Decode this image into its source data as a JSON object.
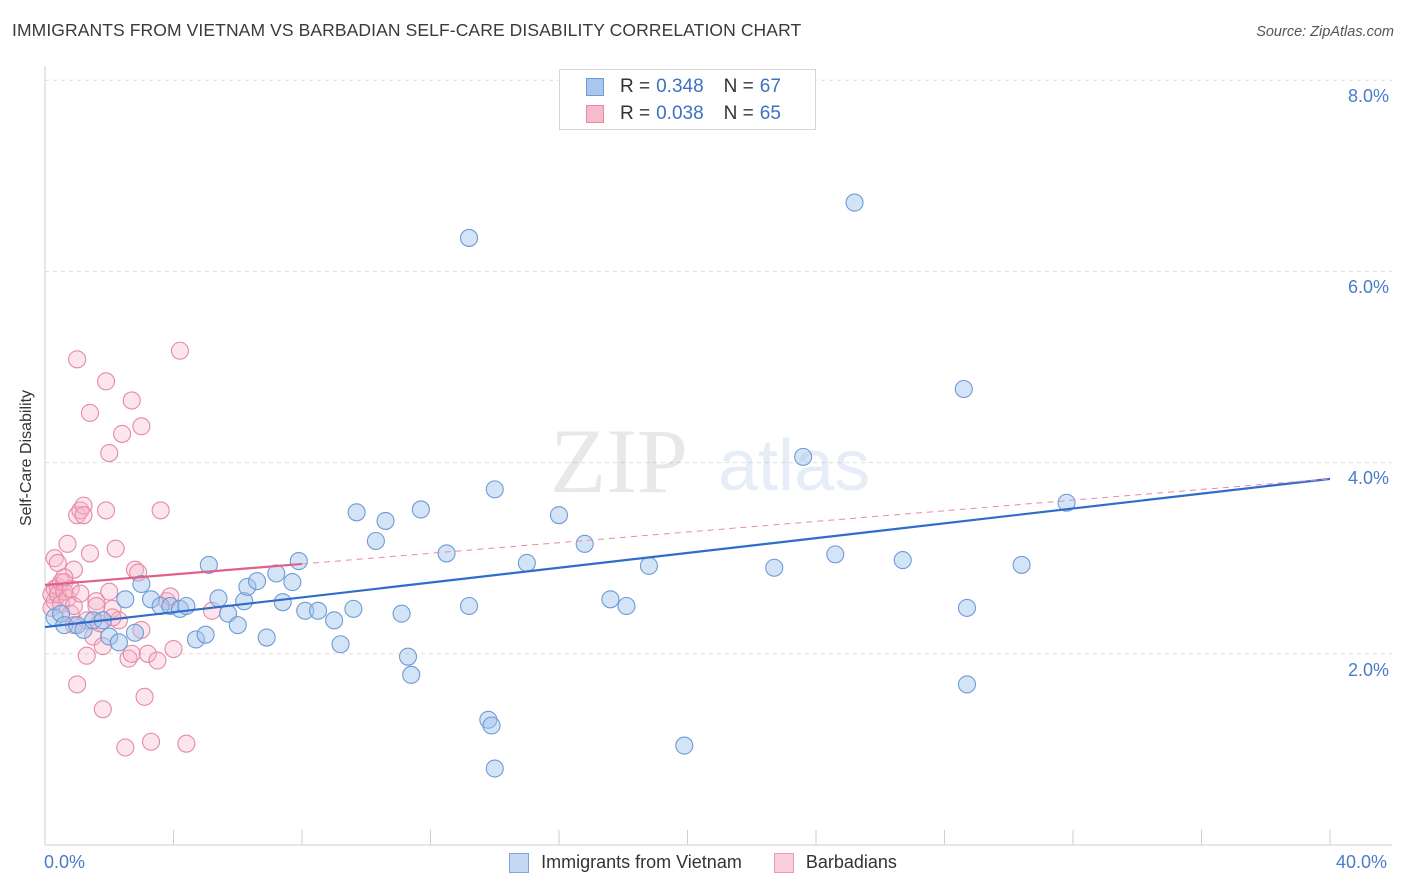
{
  "title": "IMMIGRANTS FROM VIETNAM VS BARBADIAN SELF-CARE DISABILITY CORRELATION CHART",
  "source": "Source: ZipAtlas.com",
  "watermark": {
    "zip": "ZIP",
    "atlas": "atlas"
  },
  "legend_top": {
    "rows": [
      {
        "r_key": "R =",
        "r_value": "0.348",
        "n_key": "N =",
        "n_value": "67",
        "fill": "#a9c6ef",
        "stroke": "#6e9ad6"
      },
      {
        "r_key": "R =",
        "r_value": "0.038",
        "n_key": "N =",
        "n_value": "65",
        "fill": "#f7bccc",
        "stroke": "#e58aa6"
      }
    ]
  },
  "legend_bottom": [
    {
      "label": "Immigrants from Vietnam",
      "fill": "#c4d8f3",
      "stroke": "#7ea5dc"
    },
    {
      "label": "Barbadians",
      "fill": "#f9cfdb",
      "stroke": "#ea9bb5"
    }
  ],
  "chart_data": {
    "type": "scatter",
    "title": "IMMIGRANTS FROM VIETNAM VS BARBADIAN SELF-CARE DISABILITY CORRELATION CHART",
    "xlabel": "",
    "ylabel": "Self-Care Disability",
    "xlim": [
      0,
      40
    ],
    "ylim": [
      0,
      8
    ],
    "x_tick_labels": [
      "0.0%",
      "40.0%"
    ],
    "y_tick_labels": [
      "2.0%",
      "4.0%",
      "6.0%",
      "8.0%"
    ],
    "y_tick_values": [
      2,
      4,
      6,
      8
    ],
    "grid": "horizontal dashed",
    "series": [
      {
        "name": "Immigrants from Vietnam",
        "color": "#6e9ad6",
        "fill": "rgba(160,195,238,0.45)",
        "trend": {
          "x0": 0,
          "y0": 2.28,
          "x1": 40,
          "y1": 3.83,
          "color": "#2f6ccc"
        },
        "points": [
          [
            0.3,
            2.38
          ],
          [
            0.5,
            2.42
          ],
          [
            0.6,
            2.3
          ],
          [
            1.0,
            2.3
          ],
          [
            1.2,
            2.25
          ],
          [
            1.5,
            2.35
          ],
          [
            1.8,
            2.35
          ],
          [
            2.0,
            2.18
          ],
          [
            2.3,
            2.12
          ],
          [
            2.5,
            2.57
          ],
          [
            2.8,
            2.22
          ],
          [
            3.0,
            2.73
          ],
          [
            3.3,
            2.57
          ],
          [
            3.6,
            2.5
          ],
          [
            3.9,
            2.5
          ],
          [
            4.2,
            2.47
          ],
          [
            4.4,
            2.5
          ],
          [
            4.7,
            2.15
          ],
          [
            5.0,
            2.2
          ],
          [
            5.1,
            2.93
          ],
          [
            5.4,
            2.58
          ],
          [
            5.7,
            2.42
          ],
          [
            6.0,
            2.3
          ],
          [
            6.2,
            2.55
          ],
          [
            6.3,
            2.7
          ],
          [
            6.6,
            2.76
          ],
          [
            6.9,
            2.17
          ],
          [
            7.2,
            2.84
          ],
          [
            7.4,
            2.54
          ],
          [
            7.7,
            2.75
          ],
          [
            7.9,
            2.97
          ],
          [
            8.1,
            2.45
          ],
          [
            8.5,
            2.45
          ],
          [
            9.0,
            2.35
          ],
          [
            9.2,
            2.1
          ],
          [
            9.6,
            2.47
          ],
          [
            9.7,
            3.48
          ],
          [
            10.3,
            3.18
          ],
          [
            10.6,
            3.39
          ],
          [
            11.1,
            2.42
          ],
          [
            11.3,
            1.97
          ],
          [
            11.4,
            1.78
          ],
          [
            11.7,
            3.51
          ],
          [
            12.5,
            3.05
          ],
          [
            13.2,
            6.35
          ],
          [
            13.2,
            2.5
          ],
          [
            13.8,
            1.31
          ],
          [
            13.9,
            1.25
          ],
          [
            14.0,
            3.72
          ],
          [
            14.0,
            0.8
          ],
          [
            15.0,
            2.95
          ],
          [
            16.0,
            3.45
          ],
          [
            16.8,
            3.15
          ],
          [
            17.6,
            2.57
          ],
          [
            18.1,
            2.5
          ],
          [
            18.8,
            2.92
          ],
          [
            19.9,
            1.04
          ],
          [
            22.7,
            2.9
          ],
          [
            23.6,
            4.06
          ],
          [
            24.6,
            3.04
          ],
          [
            25.2,
            6.72
          ],
          [
            26.7,
            2.98
          ],
          [
            28.6,
            4.77
          ],
          [
            28.7,
            2.48
          ],
          [
            28.7,
            1.68
          ],
          [
            30.4,
            2.93
          ],
          [
            31.8,
            3.58
          ]
        ]
      },
      {
        "name": "Barbadians",
        "color": "#e58aa6",
        "fill": "rgba(246,180,200,0.35)",
        "trend": {
          "x0": 0,
          "y0": 2.72,
          "x1": 8,
          "y1": 2.94,
          "color": "#e0608c"
        },
        "trend_dashed": {
          "x0": 8,
          "y0": 2.94,
          "x1": 40,
          "y1": 3.83,
          "color": "#e78aa8"
        },
        "points": [
          [
            0.2,
            2.48
          ],
          [
            0.2,
            2.62
          ],
          [
            0.3,
            2.55
          ],
          [
            0.3,
            2.68
          ],
          [
            0.3,
            3.0
          ],
          [
            0.4,
            2.7
          ],
          [
            0.4,
            2.62
          ],
          [
            0.5,
            2.75
          ],
          [
            0.5,
            2.52
          ],
          [
            0.6,
            2.75
          ],
          [
            0.6,
            2.65
          ],
          [
            0.7,
            2.58
          ],
          [
            0.7,
            3.15
          ],
          [
            0.8,
            2.68
          ],
          [
            0.8,
            2.42
          ],
          [
            0.9,
            2.5
          ],
          [
            0.9,
            2.88
          ],
          [
            1.0,
            3.45
          ],
          [
            1.0,
            1.68
          ],
          [
            1.1,
            3.5
          ],
          [
            1.2,
            3.55
          ],
          [
            1.2,
            3.45
          ],
          [
            1.3,
            2.35
          ],
          [
            1.4,
            3.05
          ],
          [
            1.5,
            2.18
          ],
          [
            1.6,
            2.55
          ],
          [
            1.7,
            2.32
          ],
          [
            1.8,
            2.08
          ],
          [
            1.8,
            1.42
          ],
          [
            1.9,
            3.5
          ],
          [
            2.0,
            2.65
          ],
          [
            2.0,
            4.1
          ],
          [
            2.1,
            2.47
          ],
          [
            2.2,
            3.1
          ],
          [
            2.3,
            2.35
          ],
          [
            2.5,
            1.02
          ],
          [
            2.6,
            1.95
          ],
          [
            2.7,
            2.0
          ],
          [
            2.8,
            2.88
          ],
          [
            2.9,
            2.85
          ],
          [
            3.0,
            2.25
          ],
          [
            3.1,
            1.55
          ],
          [
            3.2,
            2.0
          ],
          [
            3.3,
            1.08
          ],
          [
            3.5,
            1.93
          ],
          [
            3.6,
            3.5
          ],
          [
            3.8,
            2.55
          ],
          [
            4.0,
            2.05
          ],
          [
            4.2,
            5.17
          ],
          [
            4.4,
            1.06
          ],
          [
            5.2,
            2.45
          ],
          [
            1.0,
            5.08
          ],
          [
            1.4,
            4.52
          ],
          [
            1.9,
            4.85
          ],
          [
            2.4,
            4.3
          ],
          [
            2.7,
            4.65
          ],
          [
            3.0,
            4.38
          ],
          [
            0.6,
            2.8
          ],
          [
            1.1,
            2.63
          ],
          [
            0.4,
            2.95
          ],
          [
            1.6,
            2.5
          ],
          [
            2.1,
            2.38
          ],
          [
            0.9,
            2.3
          ],
          [
            1.3,
            1.98
          ],
          [
            3.9,
            2.6
          ]
        ]
      }
    ]
  }
}
